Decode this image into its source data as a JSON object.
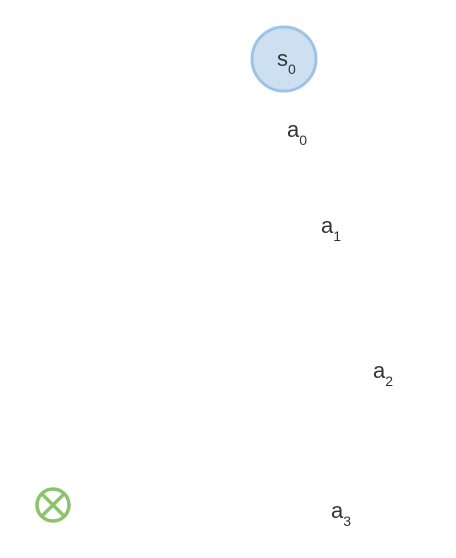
{
  "diagram": {
    "start_state": {
      "symbol": "s",
      "subscript": "0",
      "fill_color": "#cde0f2",
      "stroke_color": "#9dc3e6"
    },
    "actions": [
      {
        "symbol": "a",
        "subscript": "0"
      },
      {
        "symbol": "a",
        "subscript": "1"
      },
      {
        "symbol": "a",
        "subscript": "2"
      },
      {
        "symbol": "a",
        "subscript": "3"
      }
    ],
    "terminal_marker": {
      "icon": "circle-cross-icon",
      "color": "#8dc26a"
    }
  }
}
